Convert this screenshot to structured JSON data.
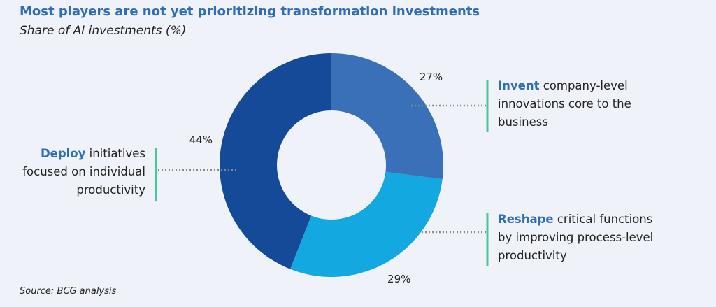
{
  "chart_data": {
    "type": "donut",
    "title": "Most players are not yet prioritizing transformation investments",
    "subtitle": "Share of AI investments (%)",
    "categories": [
      "Invent",
      "Reshape",
      "Deploy"
    ],
    "descriptions": [
      "company-level innovations core to the business",
      "critical functions by improving process-level productivity",
      "initiatives focused on individual productivity"
    ],
    "values": [
      27,
      29,
      44
    ],
    "value_labels": [
      "27%",
      "29%",
      "44%"
    ],
    "colors": [
      "#3a70b8",
      "#14a8e0",
      "#154a98"
    ],
    "source": "Source: BCG analysis"
  }
}
